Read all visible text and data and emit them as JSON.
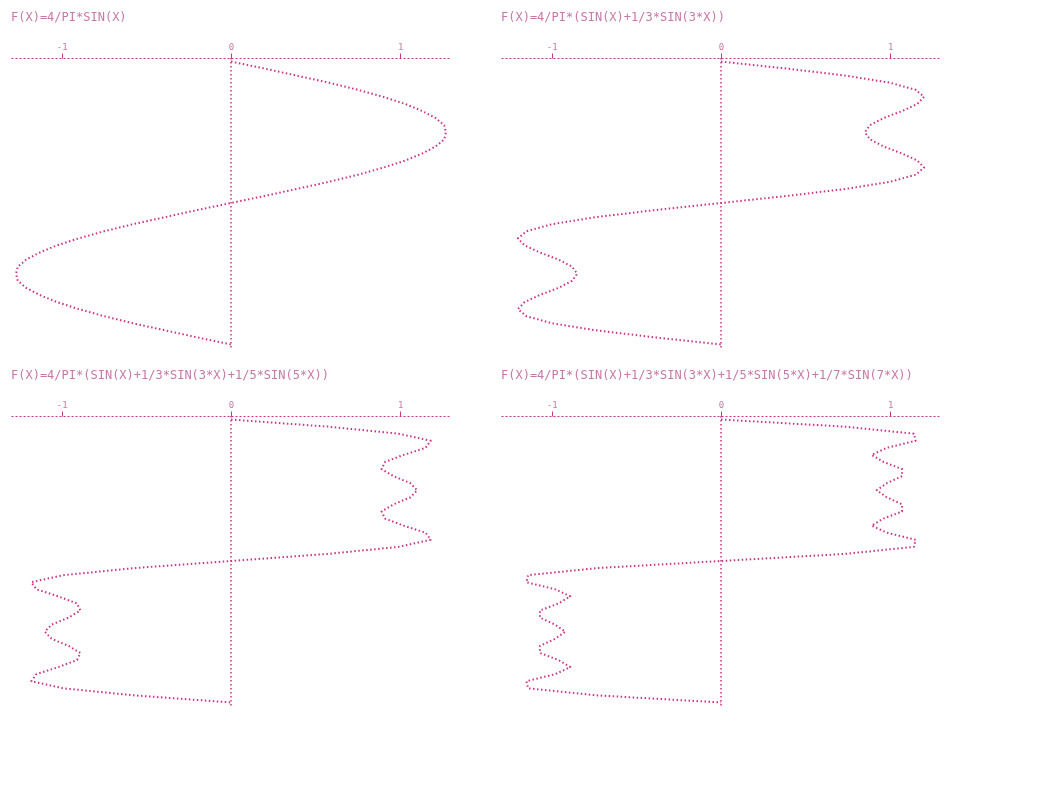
{
  "chart_data": [
    {
      "type": "line",
      "orientation": "horizontal",
      "title": "F(X)=4/PI*SIN(X)",
      "categories": [
        null,
        null,
        null,
        null,
        null,
        null,
        null,
        null,
        null,
        null,
        null,
        null,
        null,
        null,
        null,
        null,
        null,
        null,
        null,
        null,
        null,
        null,
        null,
        null,
        null,
        null,
        null,
        null,
        null,
        null,
        null,
        null,
        null,
        null,
        null,
        null,
        null,
        null,
        null,
        null,
        null
      ],
      "series": [
        {
          "color": "#cc3388",
          "values": [
            0,
            0.2,
            0.39,
            0.58,
            0.75,
            0.9,
            1.03,
            1.13,
            1.21,
            1.26,
            1.27,
            1.26,
            1.21,
            1.13,
            1.03,
            0.9,
            0.75,
            0.58,
            0.39,
            0.2,
            0,
            -0.2,
            -0.39,
            -0.58,
            -0.75,
            -0.9,
            -1.03,
            -1.13,
            -1.21,
            -1.26,
            -1.27,
            -1.26,
            -1.21,
            -1.13,
            -1.03,
            -0.9,
            -0.75,
            -0.58,
            -0.39,
            -0.2,
            0
          ]
        }
      ],
      "xlim": [
        -1.3,
        1.3
      ],
      "xticks": [
        -1,
        0,
        1
      ],
      "tick_labels": "x",
      "grid": false,
      "line_style": "dotted",
      "marker": "none",
      "ref_lines": [
        {
          "axis": "x",
          "value": 0,
          "color": "#cc3388",
          "line_style": "dotted"
        }
      ]
    },
    {
      "type": "line",
      "orientation": "horizontal",
      "title": "F(X)=4/PI*(SIN(X)+1/3*SIN(3*X))",
      "categories": [
        null,
        null,
        null,
        null,
        null,
        null,
        null,
        null,
        null,
        null,
        null,
        null,
        null,
        null,
        null,
        null,
        null,
        null,
        null,
        null,
        null,
        null,
        null,
        null,
        null,
        null,
        null,
        null,
        null,
        null,
        null,
        null,
        null,
        null,
        null,
        null,
        null,
        null,
        null,
        null,
        null
      ],
      "series": [
        {
          "color": "#cc3388",
          "values": [
            0,
            0.39,
            0.74,
            1.0,
            1.15,
            1.2,
            1.16,
            1.07,
            0.96,
            0.88,
            0.85,
            0.88,
            0.96,
            1.07,
            1.16,
            1.2,
            1.15,
            1.0,
            0.74,
            0.39,
            0,
            -0.39,
            -0.74,
            -1.0,
            -1.15,
            -1.2,
            -1.16,
            -1.07,
            -0.96,
            -0.88,
            -0.85,
            -0.88,
            -0.96,
            -1.07,
            -1.16,
            -1.2,
            -1.15,
            -1.0,
            -0.74,
            -0.39,
            0
          ]
        }
      ],
      "xlim": [
        -1.3,
        1.3
      ],
      "xticks": [
        -1,
        0,
        1
      ],
      "tick_labels": "x",
      "grid": false,
      "line_style": "dotted",
      "marker": "none",
      "ref_lines": [
        {
          "axis": "x",
          "value": 0,
          "color": "#cc3388",
          "line_style": "dotted"
        }
      ]
    },
    {
      "type": "line",
      "orientation": "horizontal",
      "title": "F(X)=4/PI*(SIN(X)+1/3*SIN(3*X)+1/5*SIN(5*X))",
      "categories": [
        null,
        null,
        null,
        null,
        null,
        null,
        null,
        null,
        null,
        null,
        null,
        null,
        null,
        null,
        null,
        null,
        null,
        null,
        null,
        null,
        null,
        null,
        null,
        null,
        null,
        null,
        null,
        null,
        null,
        null,
        null,
        null,
        null,
        null,
        null,
        null,
        null,
        null,
        null,
        null,
        null
      ],
      "series": [
        {
          "color": "#cc3388",
          "values": [
            0,
            0.57,
            0.99,
            1.18,
            1.15,
            1.02,
            0.91,
            0.89,
            0.96,
            1.06,
            1.1,
            1.06,
            0.96,
            0.89,
            0.91,
            1.02,
            1.15,
            1.18,
            0.99,
            0.57,
            0,
            -0.57,
            -0.99,
            -1.18,
            -1.15,
            -1.02,
            -0.91,
            -0.89,
            -0.96,
            -1.06,
            -1.1,
            -1.06,
            -0.96,
            -0.89,
            -0.91,
            -1.02,
            -1.15,
            -1.18,
            -0.99,
            -0.57,
            0
          ]
        }
      ],
      "xlim": [
        -1.3,
        1.3
      ],
      "xticks": [
        -1,
        0,
        1
      ],
      "tick_labels": "x",
      "grid": false,
      "line_style": "dotted",
      "marker": "none",
      "ref_lines": [
        {
          "axis": "x",
          "value": 0,
          "color": "#cc3388",
          "line_style": "dotted"
        }
      ]
    },
    {
      "type": "line",
      "orientation": "horizontal",
      "title": "F(X)=4/PI*(SIN(X)+1/3*SIN(3*X)+1/5*SIN(5*X)+1/7*SIN(7*X))",
      "categories": [
        null,
        null,
        null,
        null,
        null,
        null,
        null,
        null,
        null,
        null,
        null,
        null,
        null,
        null,
        null,
        null,
        null,
        null,
        null,
        null,
        null,
        null,
        null,
        null,
        null,
        null,
        null,
        null,
        null,
        null,
        null,
        null,
        null,
        null,
        null,
        null,
        null,
        null,
        null,
        null,
        null
      ],
      "series": [
        {
          "color": "#cc3388",
          "values": [
            0,
            0.73,
            1.14,
            1.15,
            0.98,
            0.89,
            0.96,
            1.07,
            1.07,
            0.98,
            0.92,
            0.98,
            1.07,
            1.07,
            0.96,
            0.89,
            0.98,
            1.15,
            1.14,
            0.73,
            0,
            -0.73,
            -1.14,
            -1.15,
            -0.98,
            -0.89,
            -0.96,
            -1.07,
            -1.07,
            -0.98,
            -0.92,
            -0.98,
            -1.07,
            -1.07,
            -0.96,
            -0.89,
            -0.98,
            -1.15,
            -1.14,
            -0.73,
            0
          ]
        }
      ],
      "xlim": [
        -1.3,
        1.3
      ],
      "xticks": [
        -1,
        0,
        1
      ],
      "tick_labels": "x",
      "grid": false,
      "line_style": "dotted",
      "marker": "none",
      "ref_lines": [
        {
          "axis": "x",
          "value": 0,
          "color": "#cc3388",
          "line_style": "dotted"
        }
      ]
    }
  ]
}
